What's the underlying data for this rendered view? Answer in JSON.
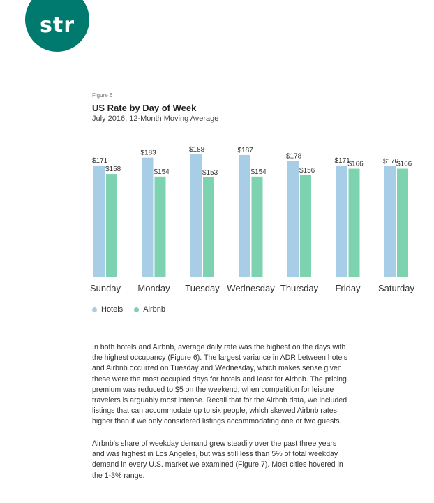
{
  "logo": {
    "text": "str"
  },
  "figure_label": "Figure 6",
  "chart_data": {
    "type": "bar",
    "title": "US Rate by Day of Week",
    "subtitle": "July 2016, 12-Month Moving Average",
    "categories": [
      "Sunday",
      "Monday",
      "Tuesday",
      "Wednesday",
      "Thursday",
      "Friday",
      "Saturday"
    ],
    "series": [
      {
        "name": "Hotels",
        "color": "#a8cde6",
        "values": [
          171,
          183,
          188,
          187,
          178,
          171,
          170
        ]
      },
      {
        "name": "Airbnb",
        "color": "#7dd2b0",
        "values": [
          158,
          154,
          153,
          154,
          156,
          166,
          166
        ]
      }
    ],
    "value_prefix": "$",
    "ylim": [
      0,
      188
    ],
    "grid": false,
    "legend": "bottom-left"
  },
  "paragraphs": [
    "In both hotels and Airbnb, average daily rate was the highest on the days with the highest occupancy (Figure 6). The largest variance in ADR between hotels and Airbnb occurred on Tuesday and Wednesday, which makes sense given these were the most occupied days for hotels and least for Airbnb. The pricing premium was reduced to $5 on the weekend, when competition for leisure travelers is arguably most intense. Recall that for the Airbnb data, we included listings that can accommodate up to six people, which skewed Airbnb rates higher than if we only considered listings accommodating one or two guests.",
    "Airbnb’s share of weekday demand grew steadily over the past three years and was highest in Los Angeles, but was still less than 5% of total weekday demand in every U.S. market we examined (Figure 7). Most cities hovered in the 1-3% range."
  ]
}
